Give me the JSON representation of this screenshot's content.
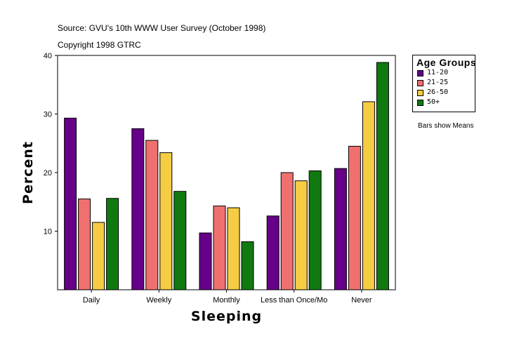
{
  "source_line": "Source: GVU's 10th WWW User Survey (October 1998)",
  "copyright_line": "Copyright 1998 GTRC",
  "note": "Bars show Means",
  "chart_data": {
    "type": "bar",
    "title": "",
    "xlabel": "Sleeping",
    "ylabel": "Percent",
    "ylim": [
      0,
      40
    ],
    "yticks": [
      10,
      20,
      30,
      40
    ],
    "categories": [
      "Daily",
      "Weekly",
      "Monthly",
      "Less than Once/Mo",
      "Never"
    ],
    "legend_title": "Age Groups",
    "series": [
      {
        "name": "11-20",
        "color": "#660088",
        "values": [
          29.3,
          27.5,
          9.7,
          12.6,
          20.7
        ]
      },
      {
        "name": "21-25",
        "color": "#F07070",
        "values": [
          15.5,
          25.5,
          14.3,
          20.0,
          24.5
        ]
      },
      {
        "name": "26-50",
        "color": "#F5CC44",
        "values": [
          11.5,
          23.4,
          14.0,
          18.6,
          32.1
        ]
      },
      {
        "name": "50+",
        "color": "#107A10",
        "values": [
          15.6,
          16.8,
          8.2,
          20.3,
          38.8
        ]
      }
    ]
  }
}
